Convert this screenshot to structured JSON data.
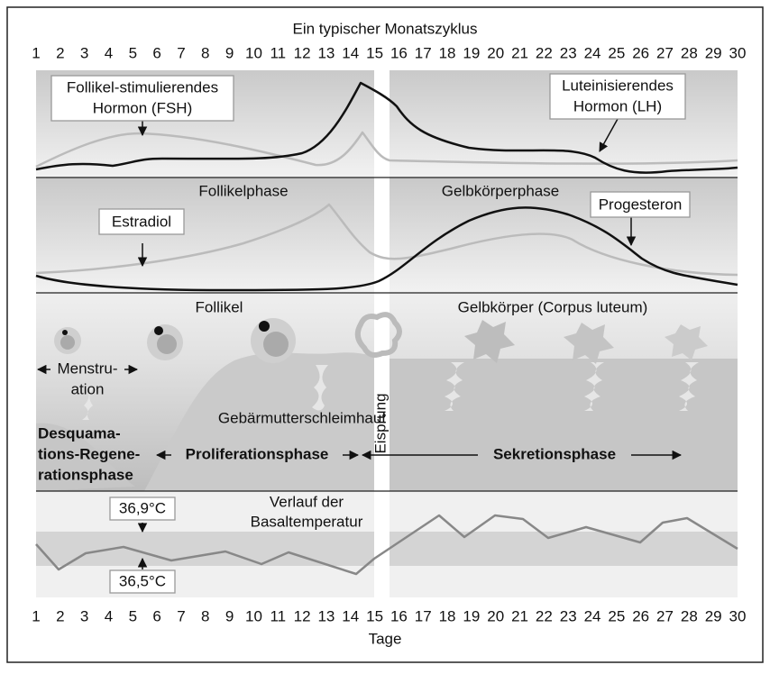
{
  "title": "Ein typischer Monatszyklus",
  "x_axis_label": "Tage",
  "days": [
    "1",
    "2",
    "3",
    "4",
    "5",
    "6",
    "7",
    "8",
    "9",
    "10",
    "11",
    "12",
    "13",
    "14",
    "15",
    "16",
    "17",
    "18",
    "19",
    "20",
    "21",
    "22",
    "23",
    "24",
    "25",
    "26",
    "27",
    "28",
    "29",
    "30"
  ],
  "hormones": {
    "fsh_label": [
      "Follikel-stimulierendes",
      "Hormon (FSH)"
    ],
    "lh_label": [
      "Luteinisierendes",
      "Hormon (LH)"
    ]
  },
  "ovarian": {
    "follicular_phase": "Follikelphase",
    "luteal_phase": "Gelbkörperphase",
    "estradiol": "Estradiol",
    "progesterone": "Progesteron"
  },
  "uterus": {
    "follicle": "Follikel",
    "corpus_luteum": "Gelbkörper (Corpus luteum)",
    "menstruation": [
      "Menstru-",
      "ation"
    ],
    "endometrium": "Gebärmutterschleimhaut",
    "ovulation": "Eisprung",
    "desquamation": [
      "Desquama-",
      "tions-Regene-",
      "rationsphase"
    ],
    "proliferation": "Proliferationsphase",
    "secretion": "Sekretionsphase"
  },
  "temperature": {
    "label": [
      "Verlauf der",
      "Basaltemperatur"
    ],
    "high": "36,9°C",
    "low": "36,5°C"
  }
}
